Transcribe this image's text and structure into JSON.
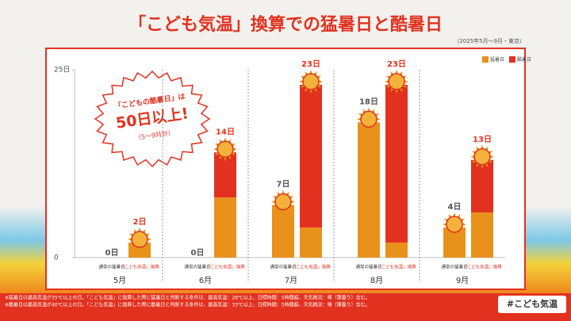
{
  "chart_data": {
    "type": "stacked_bar",
    "title": "「こども気温」換算での猛暑日と酷暑日",
    "subtitle": "（2025年5月～9月・東京）",
    "categories": [
      "5月",
      "6月",
      "7月",
      "8月",
      "9月"
    ],
    "series": [
      {
        "name": "猛暑日",
        "color": "#e8921c"
      },
      {
        "name": "酷暑日",
        "color": "#e2321f"
      }
    ],
    "groups": [
      {
        "label": "通常の猛暑日",
        "label_color": "#333333",
        "values": [
          [
            0,
            0,
            7,
            18,
            4
          ],
          [
            0,
            0,
            0,
            0,
            0
          ]
        ],
        "totals": [
          0,
          0,
          7,
          18,
          4
        ],
        "total_labels": [
          "0日",
          "0日",
          "7日",
          "18日",
          "4日"
        ]
      },
      {
        "label": "「こども気温」換算",
        "label_color": "#e2321f",
        "values": [
          [
            2,
            8,
            4,
            2,
            6
          ],
          [
            0,
            6,
            19,
            21,
            7
          ]
        ],
        "totals": [
          2,
          14,
          23,
          23,
          13
        ],
        "total_labels": [
          "2日",
          "14日",
          "23日",
          "23日",
          "13日"
        ]
      }
    ],
    "ylim": [
      0,
      25
    ],
    "yticks": [
      0,
      {
        "value": 25,
        "label": "25日"
      }
    ],
    "callout": {
      "line1": "「こどもの酷暑日」は",
      "line2": "50日以上!",
      "line3": "（5～9月計）"
    },
    "footnotes": [
      "※猛暑日は最高気温が35℃以上の日。「こども気温」に換算した際に猛暑日と判断する条件は、最高気温：28℃以上、日照時間：5時間超、天気概況：晴（薄曇り）含む。",
      "※酷暑日は最高気温が40℃以上の日。「こども気温」に換算した際に酷暑日と判断する条件は、最高気温：33℃以上、日照時間：5時間超、天気概況：晴（薄曇り）含む。"
    ],
    "hashtag": "#こども気温"
  }
}
